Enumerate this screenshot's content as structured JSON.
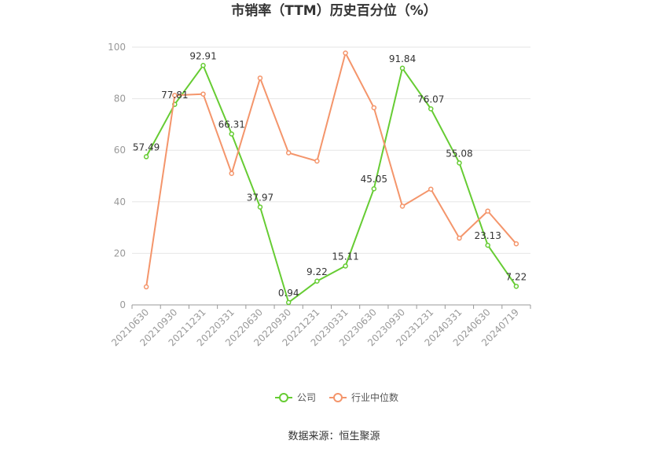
{
  "chart_data": {
    "type": "line",
    "title": "市销率（TTM）历史百分位（%）",
    "x": [
      "20210630",
      "20210930",
      "20211231",
      "20220331",
      "20220630",
      "20220930",
      "20221231",
      "20230331",
      "20230630",
      "20230930",
      "20231231",
      "20240331",
      "20240630",
      "20240719"
    ],
    "ylim": [
      0,
      100
    ],
    "yticks": [
      0,
      20,
      40,
      60,
      80,
      100
    ],
    "grid": true,
    "legend_position": "bottom",
    "series": [
      {
        "name": "公司",
        "color": "#66cc33",
        "values": [
          57.49,
          77.81,
          92.91,
          66.31,
          37.97,
          0.94,
          9.22,
          15.11,
          45.05,
          91.84,
          76.07,
          55.08,
          23.13,
          7.22
        ],
        "labels": [
          "57.49",
          "77.81",
          "92.91",
          "66.31",
          "37.97",
          "0.94",
          "9.22",
          "15.11",
          "45.05",
          "91.84",
          "76.07",
          "55.08",
          "23.13",
          "7.22"
        ]
      },
      {
        "name": "行业中位数",
        "color": "#f4956b",
        "values": [
          7.0,
          81.3,
          81.8,
          51.0,
          88.0,
          59.0,
          55.8,
          97.7,
          76.5,
          38.3,
          44.9,
          25.9,
          36.4,
          23.7
        ]
      }
    ],
    "source": "数据来源：恒生聚源"
  }
}
